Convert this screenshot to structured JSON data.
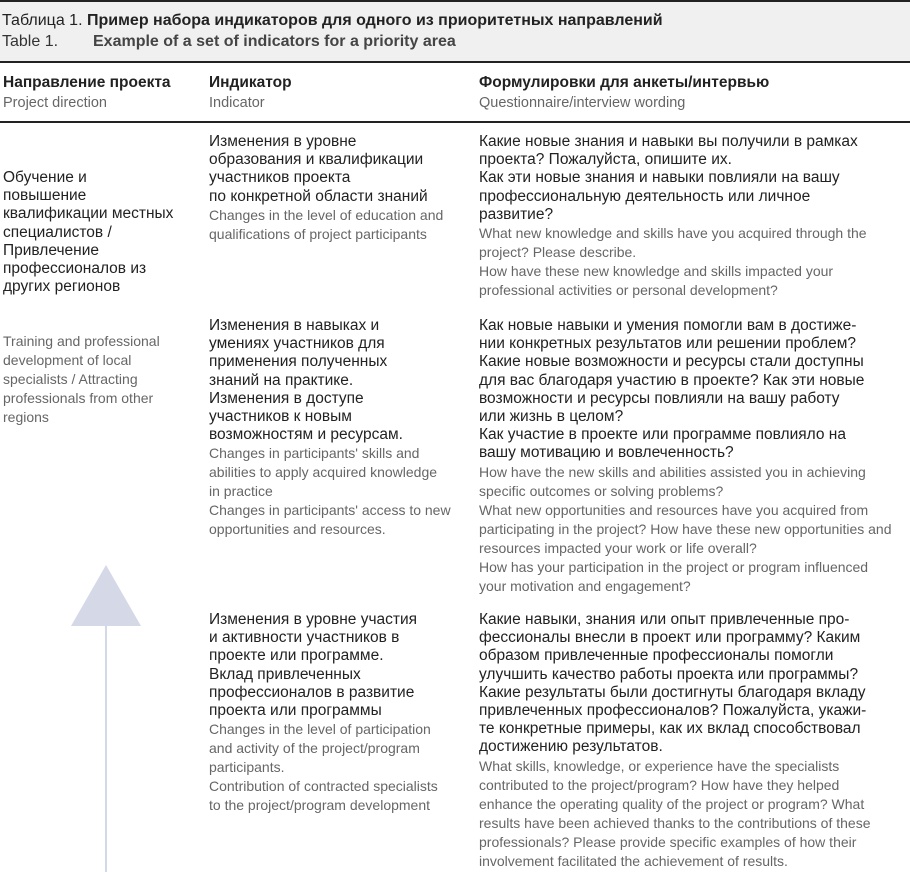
{
  "caption": {
    "ru_label": "Таблица 1.",
    "ru_title": "Пример набора индикаторов для одного из приоритетных направлений",
    "en_label": "Table 1.",
    "en_title": "Example of a set of indicators for a priority area"
  },
  "headers": [
    {
      "ru": "Направление проекта",
      "en": "Project direction"
    },
    {
      "ru": "Индикатор",
      "en": "Indicator"
    },
    {
      "ru": "Формулировки для анкеты/интервью",
      "en": "Questionnaire/interview wording"
    }
  ],
  "direction": {
    "ru": "Обучение и\nповышение\nквалификации местных\nспециалистов /\nПривлечение\nпрофессионалов из\nдругих регионов",
    "en": "Training and professional\ndevelopment of local\nspecialists / Attracting\nprofessionals from other\nregions"
  },
  "arrow_icon": "up-arrow",
  "rows": [
    {
      "indicator_ru": "Изменения в уровне\nобразования и квалификации\nучастников проекта\nпо конкретной области знаний",
      "indicator_en": "Changes in the level of education and\nqualifications of project participants",
      "questions_ru": "Какие новые знания и навыки вы получили в рамках\nпроекта? Пожалуйста, опишите их.\nКак эти новые знания и навыки повлияли на вашу\nпрофессиональную деятельность или личное\nразвитие?",
      "questions_en": "What new knowledge and skills have you acquired through the\nproject? Please describe.\nHow have these new knowledge and skills impacted your\nprofessional activities or personal development?"
    },
    {
      "indicator_ru": "Изменения в навыках и\nумениях участников для\nприменения полученных\nзнаний на практике.\nИзменения в доступе\nучастников к новым\nвозможностям и ресурсам.",
      "indicator_en": "Changes in participants' skills and\nabilities to apply acquired knowledge\nin practice\nChanges in participants' access to new\nopportunities and resources.",
      "questions_ru": "Как новые навыки и умения помогли вам в достиже-\nнии конкретных результатов или решении проблем?\nКакие новые возможности и ресурсы стали доступны\nдля вас благодаря участию в проекте? Как эти новые\nвозможности и ресурсы повлияли на вашу работу\nили жизнь в целом?\nКак участие в проекте или программе повлияло на\nвашу мотивацию и вовлеченность?",
      "questions_en": "How have the new skills and abilities assisted you in achieving\nspecific outcomes or solving problems?\nWhat new opportunities and resources have you acquired from\nparticipating in the project? How have these new opportunities and\nresources impacted your work or life overall?\nHow has your participation in the project or program influenced\nyour motivation and engagement?"
    },
    {
      "indicator_ru": "Изменения в уровне участия\nи активности участников в\nпроекте или программе.\nВклад привлеченных\nпрофессионалов в развитие\nпроекта или программы",
      "indicator_en": "Changes in the level of participation\nand activity of the project/program\nparticipants.\nContribution of contracted specialists\nto the project/program development",
      "questions_ru": "Какие навыки, знания или опыт привлеченные про-\nфессионалы внесли в проект или программу? Каким\nобразом привлеченные профессионалы помогли\nулучшить качество работы проекта или программы?\nКакие результаты были достигнуты благодаря вкладу\nпривлеченных профессионалов? Пожалуйста, укажи-\nте конкретные примеры, как их вклад способствовал\nдостижению результатов.",
      "questions_en": "What skills, knowledge, or experience have the specialists\ncontributed to the project/program? How have they helped\nenhance the operating quality of the project or program? What\nresults have been achieved thanks to the contributions of these\nprofessionals? Please provide specific examples of how their\ninvolvement facilitated the achievement of results."
    }
  ]
}
